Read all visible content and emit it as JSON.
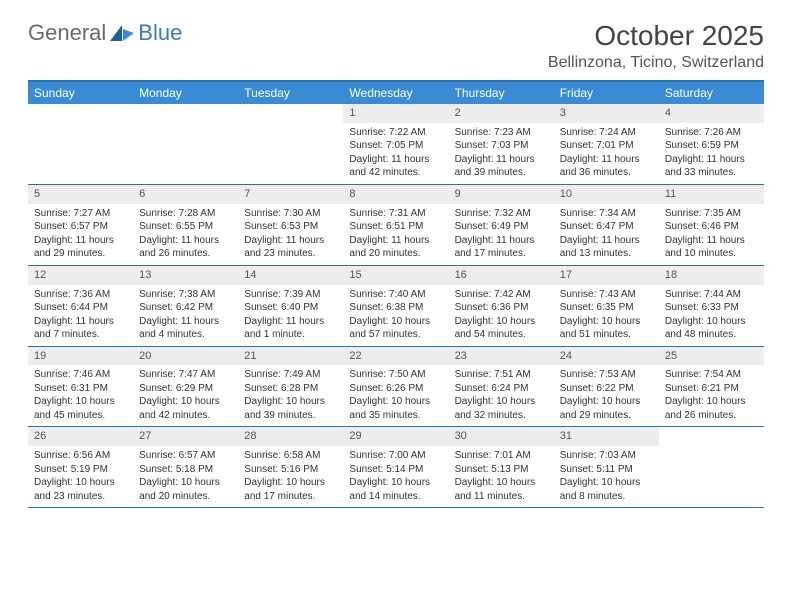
{
  "brand": {
    "general": "General",
    "blue": "Blue"
  },
  "colors": {
    "header_bg": "#3b8bd4",
    "border": "#2f6fa8",
    "daynum_bg": "#ecedef",
    "text": "#333333",
    "brand_gray": "#6a6a6a",
    "brand_blue": "#3b7bbf"
  },
  "title": "October 2025",
  "location": "Bellinzona, Ticino, Switzerland",
  "day_names": [
    "Sunday",
    "Monday",
    "Tuesday",
    "Wednesday",
    "Thursday",
    "Friday",
    "Saturday"
  ],
  "weeks": [
    [
      {
        "n": "",
        "sr": "",
        "ss": "",
        "dl": ""
      },
      {
        "n": "",
        "sr": "",
        "ss": "",
        "dl": ""
      },
      {
        "n": "",
        "sr": "",
        "ss": "",
        "dl": ""
      },
      {
        "n": "1",
        "sr": "Sunrise: 7:22 AM",
        "ss": "Sunset: 7:05 PM",
        "dl": "Daylight: 11 hours and 42 minutes."
      },
      {
        "n": "2",
        "sr": "Sunrise: 7:23 AM",
        "ss": "Sunset: 7:03 PM",
        "dl": "Daylight: 11 hours and 39 minutes."
      },
      {
        "n": "3",
        "sr": "Sunrise: 7:24 AM",
        "ss": "Sunset: 7:01 PM",
        "dl": "Daylight: 11 hours and 36 minutes."
      },
      {
        "n": "4",
        "sr": "Sunrise: 7:26 AM",
        "ss": "Sunset: 6:59 PM",
        "dl": "Daylight: 11 hours and 33 minutes."
      }
    ],
    [
      {
        "n": "5",
        "sr": "Sunrise: 7:27 AM",
        "ss": "Sunset: 6:57 PM",
        "dl": "Daylight: 11 hours and 29 minutes."
      },
      {
        "n": "6",
        "sr": "Sunrise: 7:28 AM",
        "ss": "Sunset: 6:55 PM",
        "dl": "Daylight: 11 hours and 26 minutes."
      },
      {
        "n": "7",
        "sr": "Sunrise: 7:30 AM",
        "ss": "Sunset: 6:53 PM",
        "dl": "Daylight: 11 hours and 23 minutes."
      },
      {
        "n": "8",
        "sr": "Sunrise: 7:31 AM",
        "ss": "Sunset: 6:51 PM",
        "dl": "Daylight: 11 hours and 20 minutes."
      },
      {
        "n": "9",
        "sr": "Sunrise: 7:32 AM",
        "ss": "Sunset: 6:49 PM",
        "dl": "Daylight: 11 hours and 17 minutes."
      },
      {
        "n": "10",
        "sr": "Sunrise: 7:34 AM",
        "ss": "Sunset: 6:47 PM",
        "dl": "Daylight: 11 hours and 13 minutes."
      },
      {
        "n": "11",
        "sr": "Sunrise: 7:35 AM",
        "ss": "Sunset: 6:46 PM",
        "dl": "Daylight: 11 hours and 10 minutes."
      }
    ],
    [
      {
        "n": "12",
        "sr": "Sunrise: 7:36 AM",
        "ss": "Sunset: 6:44 PM",
        "dl": "Daylight: 11 hours and 7 minutes."
      },
      {
        "n": "13",
        "sr": "Sunrise: 7:38 AM",
        "ss": "Sunset: 6:42 PM",
        "dl": "Daylight: 11 hours and 4 minutes."
      },
      {
        "n": "14",
        "sr": "Sunrise: 7:39 AM",
        "ss": "Sunset: 6:40 PM",
        "dl": "Daylight: 11 hours and 1 minute."
      },
      {
        "n": "15",
        "sr": "Sunrise: 7:40 AM",
        "ss": "Sunset: 6:38 PM",
        "dl": "Daylight: 10 hours and 57 minutes."
      },
      {
        "n": "16",
        "sr": "Sunrise: 7:42 AM",
        "ss": "Sunset: 6:36 PM",
        "dl": "Daylight: 10 hours and 54 minutes."
      },
      {
        "n": "17",
        "sr": "Sunrise: 7:43 AM",
        "ss": "Sunset: 6:35 PM",
        "dl": "Daylight: 10 hours and 51 minutes."
      },
      {
        "n": "18",
        "sr": "Sunrise: 7:44 AM",
        "ss": "Sunset: 6:33 PM",
        "dl": "Daylight: 10 hours and 48 minutes."
      }
    ],
    [
      {
        "n": "19",
        "sr": "Sunrise: 7:46 AM",
        "ss": "Sunset: 6:31 PM",
        "dl": "Daylight: 10 hours and 45 minutes."
      },
      {
        "n": "20",
        "sr": "Sunrise: 7:47 AM",
        "ss": "Sunset: 6:29 PM",
        "dl": "Daylight: 10 hours and 42 minutes."
      },
      {
        "n": "21",
        "sr": "Sunrise: 7:49 AM",
        "ss": "Sunset: 6:28 PM",
        "dl": "Daylight: 10 hours and 39 minutes."
      },
      {
        "n": "22",
        "sr": "Sunrise: 7:50 AM",
        "ss": "Sunset: 6:26 PM",
        "dl": "Daylight: 10 hours and 35 minutes."
      },
      {
        "n": "23",
        "sr": "Sunrise: 7:51 AM",
        "ss": "Sunset: 6:24 PM",
        "dl": "Daylight: 10 hours and 32 minutes."
      },
      {
        "n": "24",
        "sr": "Sunrise: 7:53 AM",
        "ss": "Sunset: 6:22 PM",
        "dl": "Daylight: 10 hours and 29 minutes."
      },
      {
        "n": "25",
        "sr": "Sunrise: 7:54 AM",
        "ss": "Sunset: 6:21 PM",
        "dl": "Daylight: 10 hours and 26 minutes."
      }
    ],
    [
      {
        "n": "26",
        "sr": "Sunrise: 6:56 AM",
        "ss": "Sunset: 5:19 PM",
        "dl": "Daylight: 10 hours and 23 minutes."
      },
      {
        "n": "27",
        "sr": "Sunrise: 6:57 AM",
        "ss": "Sunset: 5:18 PM",
        "dl": "Daylight: 10 hours and 20 minutes."
      },
      {
        "n": "28",
        "sr": "Sunrise: 6:58 AM",
        "ss": "Sunset: 5:16 PM",
        "dl": "Daylight: 10 hours and 17 minutes."
      },
      {
        "n": "29",
        "sr": "Sunrise: 7:00 AM",
        "ss": "Sunset: 5:14 PM",
        "dl": "Daylight: 10 hours and 14 minutes."
      },
      {
        "n": "30",
        "sr": "Sunrise: 7:01 AM",
        "ss": "Sunset: 5:13 PM",
        "dl": "Daylight: 10 hours and 11 minutes."
      },
      {
        "n": "31",
        "sr": "Sunrise: 7:03 AM",
        "ss": "Sunset: 5:11 PM",
        "dl": "Daylight: 10 hours and 8 minutes."
      },
      {
        "n": "",
        "sr": "",
        "ss": "",
        "dl": ""
      }
    ]
  ]
}
